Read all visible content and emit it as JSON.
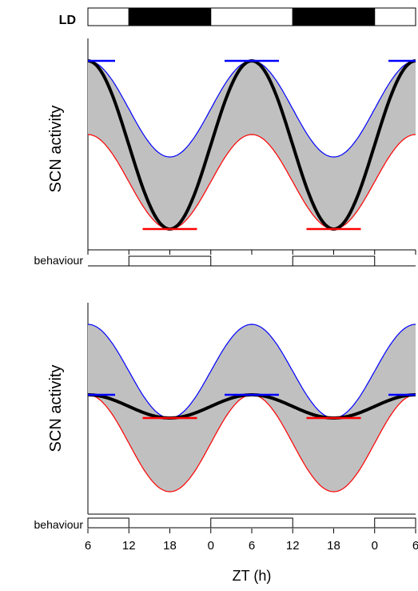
{
  "chart_data": [
    {
      "type": "line",
      "panel": "top",
      "ylabel": "SCN activity",
      "x_unit": "ZT (h)",
      "series": [
        {
          "role": "upper-envelope",
          "color": "#0000ff",
          "x": [
            6,
            12,
            18,
            24,
            30,
            36,
            42,
            48,
            54
          ],
          "y": [
            1.0,
            0.5,
            0.0,
            0.5,
            1.0,
            0.5,
            0.0,
            0.5,
            1.0
          ],
          "y_offset_top": 1.0,
          "y_offset_min": 0.6
        },
        {
          "role": "lower-envelope",
          "color": "#ff0000",
          "y_max": 0.6,
          "y_min": 0.0
        },
        {
          "role": "mean-activity",
          "color": "#000000",
          "y_max": 1.0,
          "y_min": 0.0
        }
      ],
      "peak_markers": [
        6,
        30,
        54
      ],
      "trough_markers": [
        18,
        42
      ]
    },
    {
      "type": "line",
      "panel": "bottom",
      "ylabel": "SCN activity",
      "series": [
        {
          "role": "upper-envelope",
          "color": "#0000ff",
          "y_max": 1.0,
          "y_min": 0.4
        },
        {
          "role": "lower-envelope",
          "color": "#ff0000",
          "y_max": 0.6,
          "y_min": 0.0
        },
        {
          "role": "mean-activity",
          "color": "#000000",
          "y_max": 0.6,
          "y_min": 0.4
        }
      ],
      "peak_markers": [
        6,
        30,
        54
      ],
      "trough_markers": [
        18,
        42
      ]
    }
  ],
  "ld_bar": {
    "label": "LD",
    "segments": [
      {
        "from": 6,
        "to": 12,
        "state": "light"
      },
      {
        "from": 12,
        "to": 24,
        "state": "dark"
      },
      {
        "from": 24,
        "to": 36,
        "state": "light"
      },
      {
        "from": 36,
        "to": 48,
        "state": "dark"
      },
      {
        "from": 48,
        "to": 54,
        "state": "light"
      }
    ]
  },
  "behaviour_top": {
    "label": "behaviour",
    "active": [
      [
        12,
        24
      ],
      [
        36,
        48
      ]
    ]
  },
  "behaviour_bottom": {
    "label": "behaviour",
    "active": [
      [
        6,
        12
      ],
      [
        24,
        36
      ],
      [
        48,
        54
      ]
    ]
  },
  "x_axis": {
    "title": "ZT (h)",
    "ticks": [
      "6",
      "12",
      "18",
      "0",
      "6",
      "12",
      "18",
      "0",
      "6"
    ]
  },
  "colors": {
    "fill": "#c0c0c0",
    "upper": "#0000ff",
    "lower": "#ff0000",
    "mean": "#000000",
    "dark": "#000000"
  }
}
